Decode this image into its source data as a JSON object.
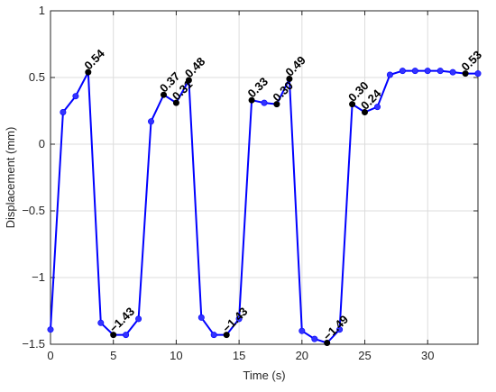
{
  "chart_data": {
    "type": "line",
    "xlabel": "Time (s)",
    "ylabel": "Displacement (mm)",
    "xlim": [
      0,
      34
    ],
    "ylim": [
      -1.5,
      1
    ],
    "x_ticks": [
      0,
      5,
      10,
      15,
      20,
      25,
      30
    ],
    "y_ticks": [
      -1.5,
      -1,
      -0.5,
      0,
      0.5,
      1
    ],
    "x_tick_labels": [
      "0",
      "5",
      "10",
      "15",
      "20",
      "25",
      "30"
    ],
    "y_tick_labels": [
      "−1.5",
      "−1",
      "−0.5",
      "0",
      "0.5",
      "1"
    ],
    "grid": true,
    "line_color": "#0000ff",
    "marker_color": "#3333ff",
    "highlight_color": "#000000",
    "series": [
      {
        "x": [
          0,
          1,
          2,
          3,
          4,
          5,
          6,
          7,
          8,
          9,
          10,
          11,
          12,
          13,
          14,
          15,
          16,
          17,
          18,
          19,
          20,
          21,
          22,
          23,
          24,
          25,
          26,
          27,
          28,
          29,
          30,
          31,
          32,
          33,
          34
        ],
        "y": [
          -1.39,
          0.24,
          0.36,
          0.54,
          -1.34,
          -1.43,
          -1.43,
          -1.31,
          0.17,
          0.37,
          0.31,
          0.48,
          -1.3,
          -1.43,
          -1.43,
          -1.31,
          0.33,
          0.31,
          0.3,
          0.49,
          -1.4,
          -1.46,
          -1.49,
          -1.39,
          0.3,
          0.24,
          0.28,
          0.52,
          0.55,
          0.55,
          0.55,
          0.55,
          0.54,
          0.53,
          0.53
        ]
      }
    ],
    "annotations": [
      {
        "x": 3,
        "y": 0.54,
        "text": "0.54"
      },
      {
        "x": 5,
        "y": -1.43,
        "text": "−1.43"
      },
      {
        "x": 9,
        "y": 0.37,
        "text": "0.37"
      },
      {
        "x": 10,
        "y": 0.31,
        "text": "0.31"
      },
      {
        "x": 11,
        "y": 0.48,
        "text": "0.48"
      },
      {
        "x": 14,
        "y": -1.43,
        "text": "−1.43"
      },
      {
        "x": 16,
        "y": 0.33,
        "text": "0.33"
      },
      {
        "x": 18,
        "y": 0.3,
        "text": "0.30"
      },
      {
        "x": 19,
        "y": 0.49,
        "text": "0.49"
      },
      {
        "x": 22,
        "y": -1.49,
        "text": "−1.49"
      },
      {
        "x": 24,
        "y": 0.3,
        "text": "0.30"
      },
      {
        "x": 25,
        "y": 0.24,
        "text": "0.24"
      },
      {
        "x": 33,
        "y": 0.53,
        "text": "0.53"
      }
    ]
  }
}
